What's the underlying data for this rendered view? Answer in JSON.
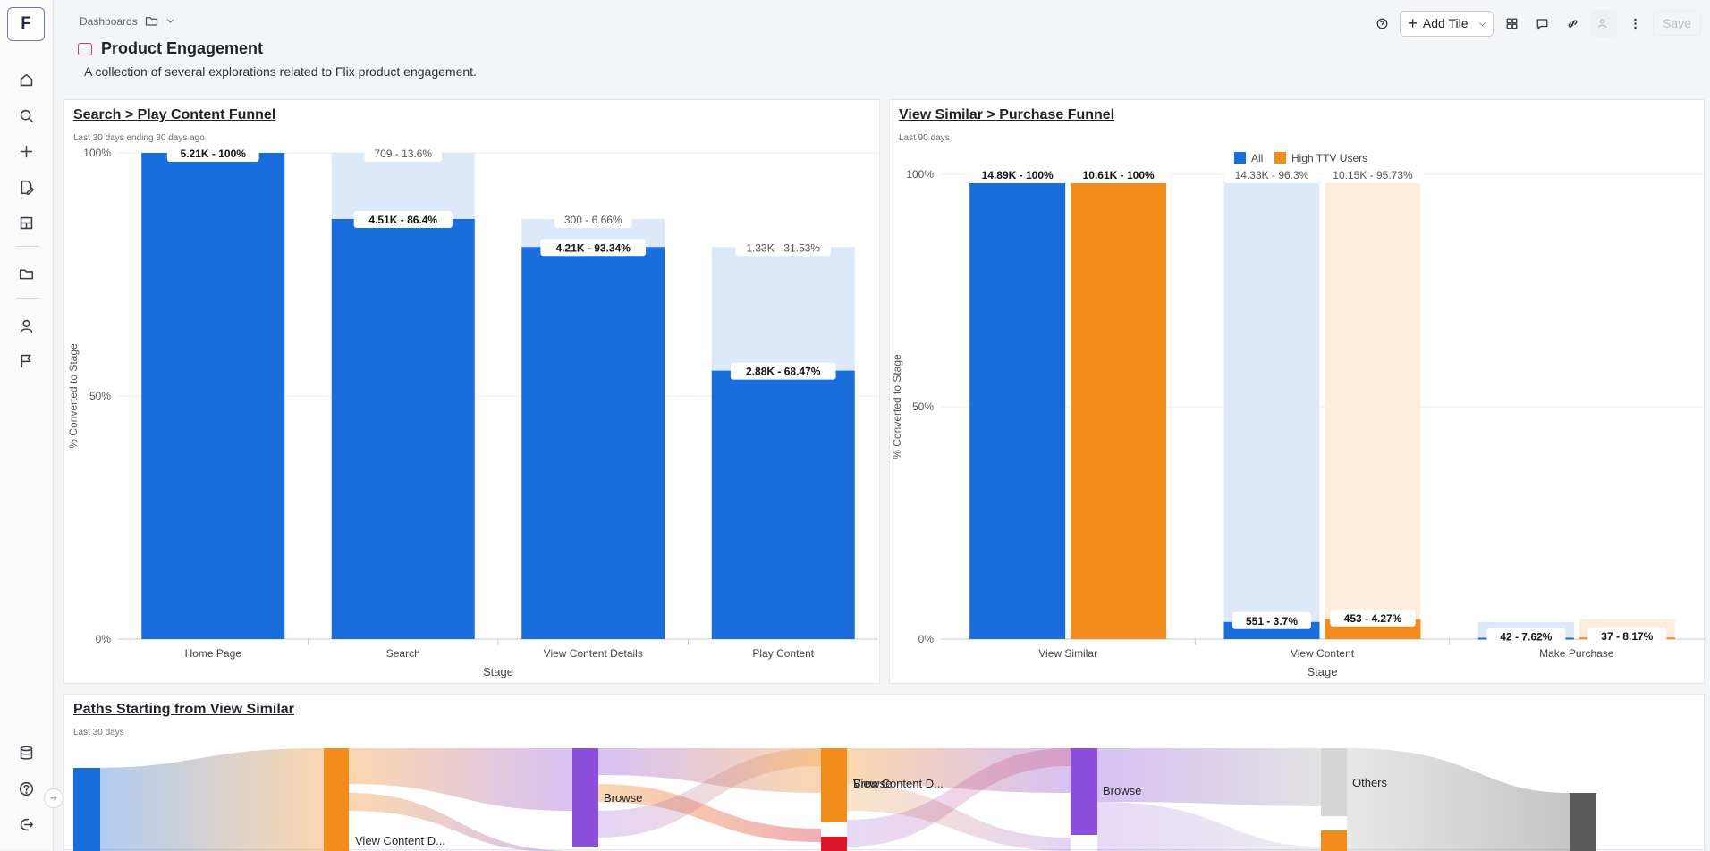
{
  "app": {
    "logo_letter": "F"
  },
  "sidebar": {
    "items": [
      {
        "name": "home-icon"
      },
      {
        "name": "search-icon"
      },
      {
        "name": "plus-icon"
      },
      {
        "name": "edit-document-icon"
      },
      {
        "name": "lab-icon"
      },
      {
        "name": "folder-icon"
      },
      {
        "name": "user-icon"
      },
      {
        "name": "flag-icon"
      },
      {
        "name": "database-icon"
      },
      {
        "name": "help-icon"
      },
      {
        "name": "logout-icon"
      }
    ]
  },
  "breadcrumb": {
    "label": "Dashboards"
  },
  "page": {
    "title": "Product Engagement",
    "description": "A collection of several explorations related to Flix product engagement."
  },
  "toolbar": {
    "add_tile": "Add Tile",
    "save": "Save"
  },
  "colors": {
    "blue": "#1a6ddc",
    "blue_light": "#dde9f8",
    "orange": "#f28c1c",
    "orange_light": "#fdebdc",
    "red": "#d9182b",
    "purple": "#8b4fdc",
    "gray": "#d6d6d6",
    "dark": "#5a5a5a"
  },
  "chart_data": [
    {
      "type": "bar",
      "title": "Search > Play Content Funnel",
      "subtitle": "Last 30 days ending 30 days ago",
      "xlabel": "Stage",
      "ylabel": "% Converted to Stage",
      "y_ticks": [
        "100%",
        "50%",
        "0%"
      ],
      "ylim": [
        0,
        100
      ],
      "categories": [
        "Home Page",
        "Search",
        "View Content Details",
        "Play Content"
      ],
      "converted_pct": [
        100,
        86.4,
        93.34,
        68.47
      ],
      "converted_of_total": [
        100,
        86.4,
        80.65,
        55.22
      ],
      "dropped_of_total": [
        0,
        13.6,
        5.75,
        25.43
      ],
      "converted_labels": [
        "5.21K - 100%",
        "4.51K - 86.4%",
        "4.21K - 93.34%",
        "2.88K - 68.47%"
      ],
      "dropped_labels": [
        "",
        "709 - 13.6%",
        "300 - 6.66%",
        "1.33K - 31.53%"
      ]
    },
    {
      "type": "bar",
      "title": "View Similar > Purchase Funnel",
      "subtitle": "Last 90 days",
      "xlabel": "Stage",
      "ylabel": "% Converted to Stage",
      "y_ticks": [
        "100%",
        "50%",
        "0%"
      ],
      "ylim": [
        0,
        100
      ],
      "categories": [
        "View Similar",
        "View Content",
        "Make Purchase"
      ],
      "legend": [
        "All",
        "High TTV Users"
      ],
      "legend_position": "top",
      "series": [
        {
          "name": "All",
          "converted_of_total": [
            100,
            3.7,
            0.28
          ],
          "dropped_of_total": [
            0,
            96.3,
            3.42
          ],
          "converted_labels": [
            "14.89K - 100%",
            "551 - 3.7%",
            "42 - 7.62%"
          ],
          "dropped_labels": [
            "",
            "14.33K - 96.3%",
            ""
          ]
        },
        {
          "name": "High TTV Users",
          "converted_of_total": [
            100,
            4.27,
            0.35
          ],
          "dropped_of_total": [
            0,
            95.73,
            3.92
          ],
          "converted_labels": [
            "10.61K - 100%",
            "453 - 4.27%",
            "37 - 8.17%"
          ],
          "dropped_labels": [
            "",
            "10.15K - 95.73%",
            ""
          ]
        }
      ]
    },
    {
      "type": "sankey",
      "title": "Paths Starting from View Similar",
      "subtitle": "Last 30 days",
      "node_labels": [
        "Browse",
        "View Content D...",
        "Browse",
        "View Content D...",
        "Browse",
        "Others"
      ]
    }
  ]
}
